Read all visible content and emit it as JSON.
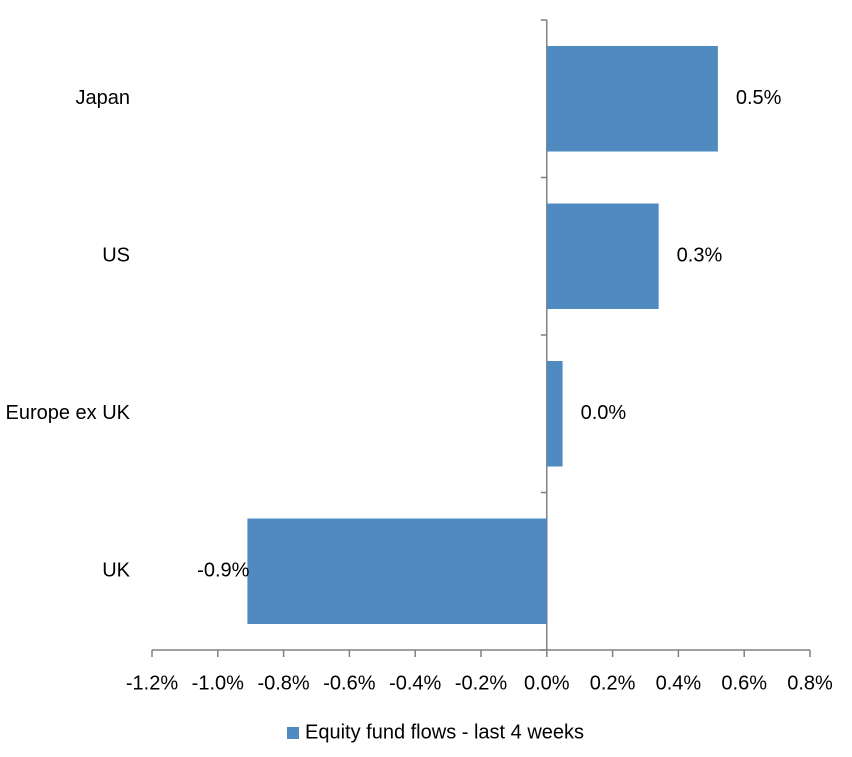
{
  "chart_data": {
    "type": "bar",
    "orientation": "horizontal",
    "categories": [
      "Japan",
      "US",
      "Europe ex UK",
      "UK"
    ],
    "series": [
      {
        "name": "Equity fund flows - last 4 weeks",
        "color": "#4f8bc0",
        "values": [
          0.52,
          0.34,
          0.048,
          -0.91
        ],
        "value_labels": [
          "0.5%",
          "0.3%",
          "0.0%",
          "-0.9%"
        ]
      }
    ],
    "xlim": [
      -1.2,
      0.8
    ],
    "xticks": [
      {
        "value": -1.2,
        "label": "-1.2%"
      },
      {
        "value": -1.0,
        "label": "-1.0%"
      },
      {
        "value": -0.8,
        "label": "-0.8%"
      },
      {
        "value": -0.6,
        "label": "-0.6%"
      },
      {
        "value": -0.4,
        "label": "-0.4%"
      },
      {
        "value": -0.2,
        "label": "-0.2%"
      },
      {
        "value": 0,
        "label": "0.0%"
      },
      {
        "value": 0.2,
        "label": "0.2%"
      },
      {
        "value": 0.4,
        "label": "0.4%"
      },
      {
        "value": 0.6,
        "label": "0.6%"
      },
      {
        "value": 0.8,
        "label": "0.8%"
      }
    ],
    "grid": false,
    "legend": "bottom"
  }
}
